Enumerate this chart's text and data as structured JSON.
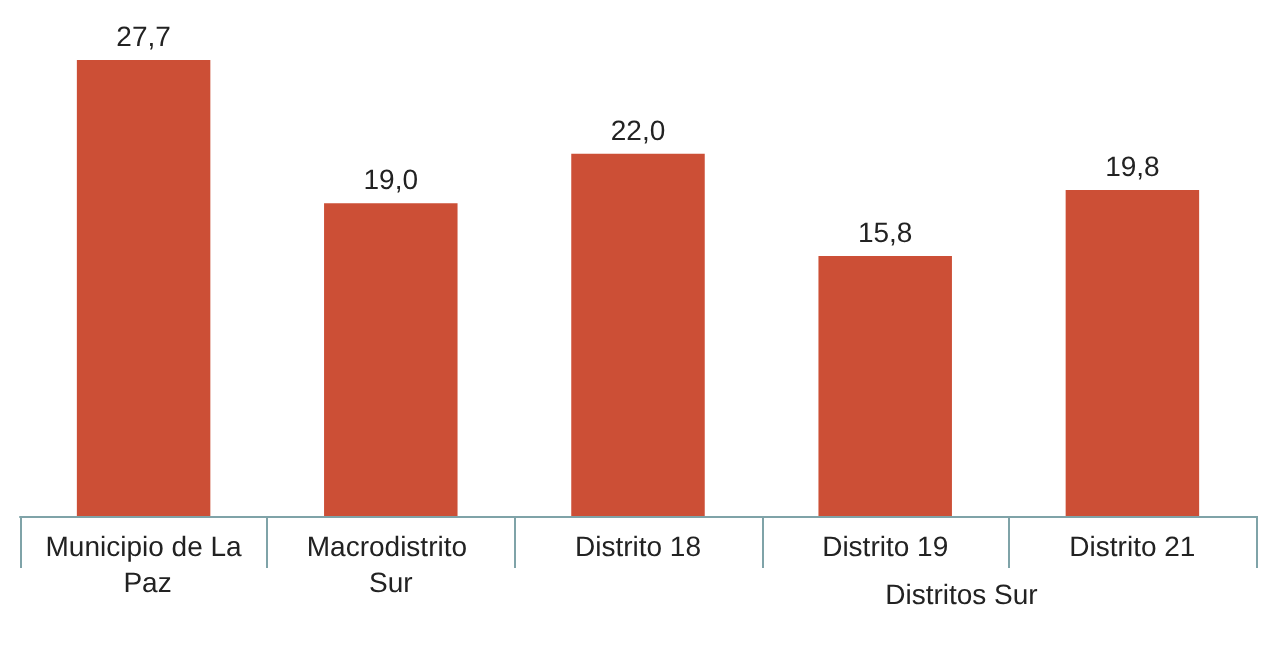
{
  "chart_data": {
    "type": "bar",
    "categories": [
      "Municipio de La Paz",
      "Macrodistrito Sur",
      "Distrito 18",
      "Distrito 19",
      "Distrito 21"
    ],
    "values": [
      27.7,
      19.0,
      22.0,
      15.8,
      19.8
    ],
    "value_labels": [
      "27,7",
      "19,0",
      "22,0",
      "15,8",
      "19,8"
    ],
    "color": "#cc4f36",
    "annotations": [
      "Distritos Sur"
    ]
  }
}
